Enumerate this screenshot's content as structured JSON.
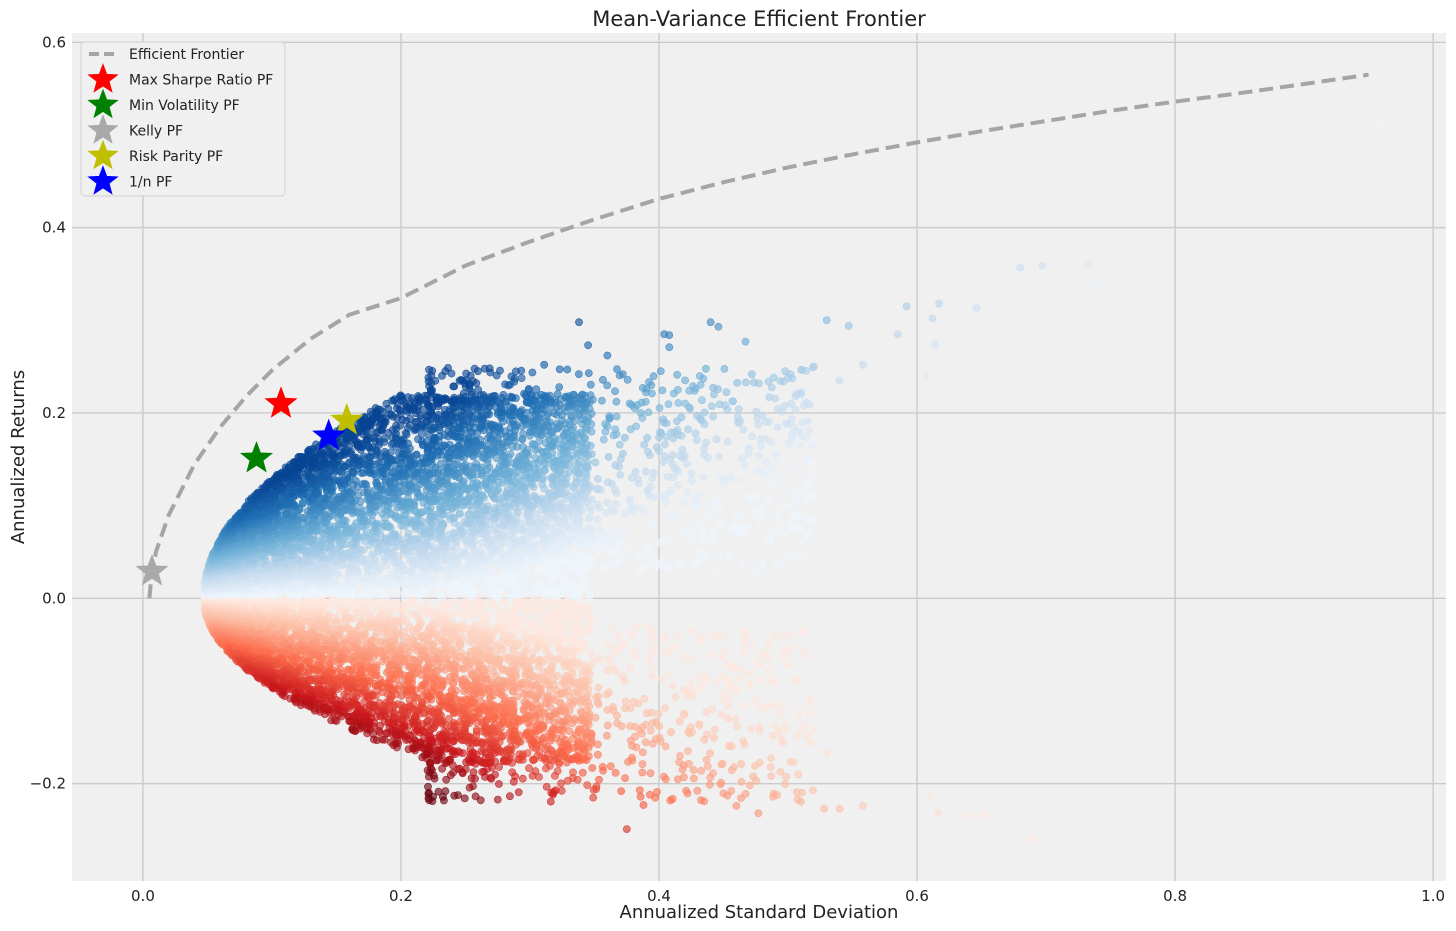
{
  "chart_data": {
    "type": "scatter",
    "title": "Mean-Variance Efficient Frontier",
    "xlabel": "Annualized Standard Deviation",
    "ylabel": "Annualized Returns",
    "xlim": [
      -0.055,
      1.01
    ],
    "ylim": [
      -0.305,
      0.61
    ],
    "xticks": [
      0.0,
      0.2,
      0.4,
      0.6,
      0.8,
      1.0
    ],
    "xtick_labels": [
      "0.0",
      "0.2",
      "0.4",
      "0.6",
      "0.8",
      "1.0"
    ],
    "yticks": [
      -0.2,
      0.0,
      0.2,
      0.4,
      0.6
    ],
    "ytick_labels": [
      "−0.2",
      "0.0",
      "0.2",
      "0.4",
      "0.6"
    ],
    "grid": true,
    "legend_position": "top-left",
    "colors": {
      "background": "#f0f0f0",
      "grid": "#cbcbcb",
      "frontier": "#a5a5a5",
      "positive_cmap": "Blues",
      "negative_cmap": "Reds"
    },
    "frontier": {
      "name": "Efficient Frontier",
      "x": [
        0.005,
        0.006,
        0.01,
        0.02,
        0.04,
        0.06,
        0.08,
        0.1,
        0.13,
        0.16,
        0.2,
        0.25,
        0.3,
        0.35,
        0.4,
        0.45,
        0.5,
        0.55,
        0.6,
        0.65,
        0.7,
        0.75,
        0.8,
        0.85,
        0.9,
        0.95
      ],
      "y": [
        0.0,
        0.015,
        0.05,
        0.09,
        0.145,
        0.185,
        0.218,
        0.246,
        0.28,
        0.306,
        0.324,
        0.359,
        0.385,
        0.409,
        0.431,
        0.449,
        0.465,
        0.479,
        0.492,
        0.504,
        0.515,
        0.526,
        0.536,
        0.545,
        0.555,
        0.565
      ]
    },
    "special_portfolios": [
      {
        "name": "Max Sharpe Ratio PF",
        "x": 0.107,
        "y": 0.21,
        "color": "#ff0000"
      },
      {
        "name": "Min Volatility PF",
        "x": 0.088,
        "y": 0.151,
        "color": "#008000"
      },
      {
        "name": "Kelly PF",
        "x": 0.007,
        "y": 0.029,
        "color": "#a9a9a9"
      },
      {
        "name": "Risk Parity PF",
        "x": 0.158,
        "y": 0.192,
        "color": "#bfbf00"
      },
      {
        "name": "1/n PF",
        "x": 0.144,
        "y": 0.175,
        "color": "#0000ff"
      }
    ],
    "scatter_outliers": [
      {
        "x": 0.958,
        "y": 0.514
      },
      {
        "x": 0.733,
        "y": 0.36
      },
      {
        "x": 0.697,
        "y": 0.359
      },
      {
        "x": 0.68,
        "y": 0.357
      },
      {
        "x": 0.737,
        "y": 0.337
      },
      {
        "x": 0.617,
        "y": 0.318
      },
      {
        "x": 0.646,
        "y": 0.313
      },
      {
        "x": 0.592,
        "y": 0.315
      },
      {
        "x": 0.612,
        "y": 0.302
      },
      {
        "x": 0.53,
        "y": 0.3
      },
      {
        "x": 0.547,
        "y": 0.294
      },
      {
        "x": 0.585,
        "y": 0.285
      },
      {
        "x": 0.614,
        "y": 0.274
      },
      {
        "x": 0.607,
        "y": 0.24
      },
      {
        "x": 0.558,
        "y": 0.252
      },
      {
        "x": 0.52,
        "y": 0.25
      },
      {
        "x": 0.5,
        "y": 0.238
      },
      {
        "x": 0.54,
        "y": 0.235
      },
      {
        "x": 0.467,
        "y": 0.277
      },
      {
        "x": 0.44,
        "y": 0.298
      },
      {
        "x": 0.446,
        "y": 0.293
      },
      {
        "x": 0.404,
        "y": 0.285
      },
      {
        "x": 0.408,
        "y": 0.284
      },
      {
        "x": 0.408,
        "y": 0.271
      },
      {
        "x": 0.345,
        "y": 0.273
      },
      {
        "x": 0.338,
        "y": 0.298
      },
      {
        "x": 0.36,
        "y": 0.262
      },
      {
        "x": 0.311,
        "y": 0.252
      },
      {
        "x": 0.518,
        "y": 0.145
      },
      {
        "x": 0.688,
        "y": -0.26
      },
      {
        "x": 0.652,
        "y": -0.234
      },
      {
        "x": 0.641,
        "y": -0.234
      },
      {
        "x": 0.616,
        "y": -0.232
      },
      {
        "x": 0.61,
        "y": -0.213
      },
      {
        "x": 0.558,
        "y": -0.224
      },
      {
        "x": 0.54,
        "y": -0.227
      },
      {
        "x": 0.528,
        "y": -0.227
      },
      {
        "x": 0.53,
        "y": -0.167
      },
      {
        "x": 0.508,
        "y": -0.19
      },
      {
        "x": 0.477,
        "y": -0.232
      },
      {
        "x": 0.46,
        "y": -0.224
      },
      {
        "x": 0.375,
        "y": -0.249
      },
      {
        "x": 0.388,
        "y": -0.223
      },
      {
        "x": 0.349,
        "y": -0.215
      },
      {
        "x": 0.32,
        "y": -0.207
      }
    ]
  }
}
